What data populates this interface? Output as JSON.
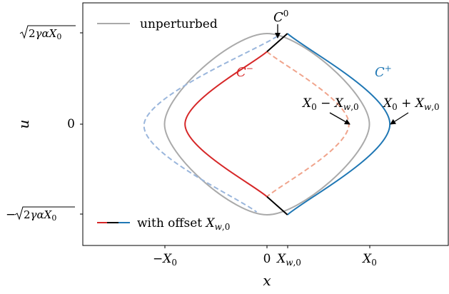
{
  "chart_data": {
    "type": "line",
    "title": "",
    "xlabel": "x",
    "ylabel": "u",
    "xlim": [
      -1.3,
      1.8
    ],
    "ylim": [
      -1.3,
      1.3
    ],
    "grid": false,
    "x_ticks": [
      {
        "value": -1.0,
        "label": "−X₀"
      },
      {
        "value": 0.0,
        "label": "0"
      },
      {
        "value": 0.2,
        "label": "X_{w,0}"
      },
      {
        "value": 1.0,
        "label": "X₀"
      }
    ],
    "y_ticks": [
      {
        "value": 1.0,
        "label": "√(2γαX₀)"
      },
      {
        "value": 0.0,
        "label": "0"
      },
      {
        "value": -1.0,
        "label": "−√(2γαX₀)"
      }
    ],
    "x_offset": 0.2,
    "legend": {
      "placement": "top-left and bottom-left",
      "entries": [
        {
          "label": "unperturbed",
          "color": "#aaaaaa"
        },
        {
          "label": "with offset X_{w,0}",
          "colors": [
            "#d62728",
            "#000000",
            "#1f77b4"
          ]
        }
      ]
    },
    "annotations": {
      "c0": "C⁰",
      "c_minus": "C⁻",
      "c_plus": "C⁺",
      "left_point": "X₀ − X_{w,0}",
      "right_point": "X₀ + X_{w,0}"
    },
    "series": [
      {
        "style": "solid",
        "color": "#aaaaaa",
        "points": [
          [
            0,
            1
          ],
          [
            1,
            0
          ],
          [
            0,
            -1
          ],
          [
            -1,
            0
          ]
        ]
      },
      {
        "style": "dashed",
        "color": "#9ab6dc",
        "points": [
          [
            0.1,
            0.97
          ],
          [
            -1.2,
            0
          ],
          [
            -0.1,
            -0.97
          ]
        ]
      },
      {
        "style": "dashed",
        "color": "#f0a48c",
        "points": [
          [
            0,
            0.8
          ],
          [
            0.8,
            0
          ],
          [
            0,
            -0.8
          ]
        ]
      },
      {
        "style": "solid",
        "color": "#d62728",
        "points": [
          [
            0,
            0.8
          ],
          [
            -0.8,
            0
          ],
          [
            0,
            -0.8
          ]
        ]
      },
      {
        "style": "solid",
        "color": "#1f77b4",
        "points": [
          [
            0.2,
            1
          ],
          [
            1.2,
            0
          ],
          [
            0.2,
            -1
          ]
        ]
      },
      {
        "style": "solid",
        "color": "#000000",
        "points": [
          [
            0,
            0.8
          ],
          [
            0.2,
            1
          ]
        ]
      },
      {
        "style": "solid",
        "color": "#000000",
        "points": [
          [
            0,
            -0.8
          ],
          [
            0.2,
            -1
          ]
        ]
      }
    ]
  }
}
